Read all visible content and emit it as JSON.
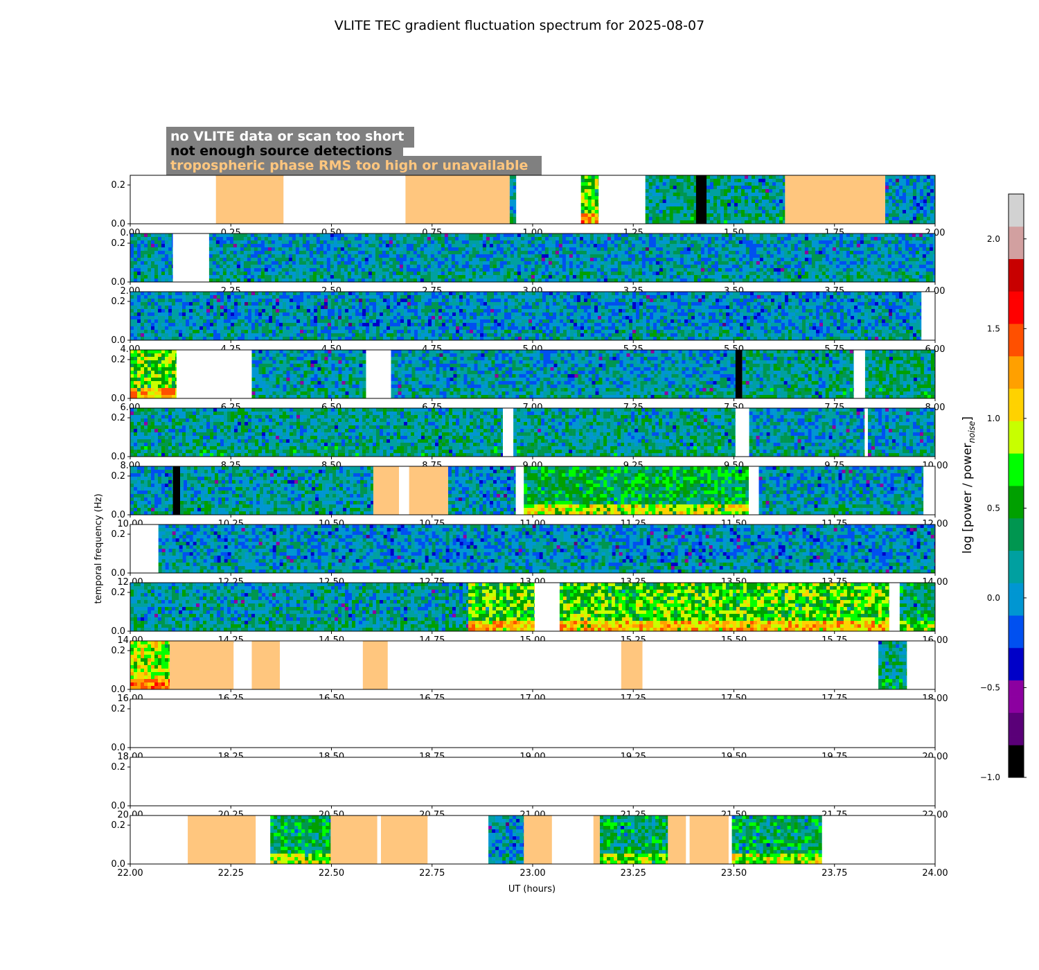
{
  "chart_data": {
    "type": "heatmap",
    "title": "VLITE TEC gradient fluctuation spectrum for 2025-08-07",
    "xlabel": "UT (hours)",
    "ylabel": "temporal frequency (Hz)",
    "yticks": [
      "0.0",
      "0.2"
    ],
    "ylim": [
      0,
      0.25
    ],
    "colorbar": {
      "label": "log [power / power_noise]",
      "range": [
        -1.0,
        2.25
      ],
      "ticks": [
        "−1.0",
        "−0.5",
        "0.0",
        "0.5",
        "1.0",
        "1.5",
        "2.0"
      ],
      "tick_values": [
        -1.0,
        -0.5,
        0.0,
        0.5,
        1.0,
        1.5,
        2.0
      ],
      "colors": [
        "#000000",
        "#5a0078",
        "#8c00a0",
        "#0000c8",
        "#0050f0",
        "#0096d2",
        "#00a0a0",
        "#009650",
        "#00a000",
        "#00ff00",
        "#c8ff00",
        "#ffd200",
        "#ffa000",
        "#ff5000",
        "#ff0000",
        "#c80000",
        "#d2a0a0",
        "#d2d2d2"
      ]
    },
    "legend": [
      {
        "text": "no VLITE data or scan too short",
        "text_color": "#ffffff",
        "box_color": "#808080"
      },
      {
        "text": "not enough source detections",
        "text_color": "#000000",
        "box_color": "#808080"
      },
      {
        "text": "tropospheric phase RMS too high or unavailable",
        "text_color": "#ffc67e",
        "box_color": "#808080"
      }
    ],
    "flag_colors": {
      "no_data": "#ffffff",
      "not_enough_detections": "#000000",
      "trop_rms": "#ffc67e"
    },
    "rows": [
      {
        "xlim": [
          0,
          2
        ],
        "xticks": [
          "0.00",
          "0.25",
          "0.50",
          "0.75",
          "1.00",
          "1.25",
          "1.50",
          "1.75",
          "2.00"
        ],
        "segments": [
          {
            "start": 0.0,
            "end": 0.213,
            "kind": "none"
          },
          {
            "start": 0.213,
            "end": 0.381,
            "kind": "trop"
          },
          {
            "start": 0.381,
            "end": 0.684,
            "kind": "none"
          },
          {
            "start": 0.684,
            "end": 0.943,
            "kind": "trop"
          },
          {
            "start": 0.943,
            "end": 0.959,
            "kind": "data",
            "level": 0.1
          },
          {
            "start": 0.959,
            "end": 1.12,
            "kind": "none"
          },
          {
            "start": 1.12,
            "end": 1.164,
            "kind": "data",
            "level": 0.75
          },
          {
            "start": 1.164,
            "end": 1.28,
            "kind": "none"
          },
          {
            "start": 1.28,
            "end": 1.406,
            "kind": "data",
            "level": 0.25
          },
          {
            "start": 1.406,
            "end": 1.432,
            "kind": "det"
          },
          {
            "start": 1.432,
            "end": 1.627,
            "kind": "data",
            "level": 0.2
          },
          {
            "start": 1.627,
            "end": 1.876,
            "kind": "trop"
          },
          {
            "start": 1.876,
            "end": 2.0,
            "kind": "data",
            "level": 0.05
          }
        ]
      },
      {
        "xlim": [
          2,
          4
        ],
        "xticks": [
          "2.00",
          "2.25",
          "2.50",
          "2.75",
          "3.00",
          "3.25",
          "3.50",
          "3.75",
          "4.00"
        ],
        "segments": [
          {
            "start": 2.0,
            "end": 2.106,
            "kind": "data",
            "level": 0.1
          },
          {
            "start": 2.106,
            "end": 2.196,
            "kind": "none"
          },
          {
            "start": 2.196,
            "end": 4.0,
            "kind": "data",
            "level": 0.1
          }
        ]
      },
      {
        "xlim": [
          4,
          6
        ],
        "xticks": [
          "4.00",
          "4.25",
          "4.50",
          "4.75",
          "5.00",
          "5.25",
          "5.50",
          "5.75",
          "6.00"
        ],
        "segments": [
          {
            "start": 4.0,
            "end": 5.966,
            "kind": "data",
            "level": 0.05
          },
          {
            "start": 5.966,
            "end": 6.0,
            "kind": "none"
          }
        ]
      },
      {
        "xlim": [
          6,
          8
        ],
        "xticks": [
          "6.00",
          "6.25",
          "6.50",
          "6.75",
          "7.00",
          "7.25",
          "7.50",
          "7.75",
          "8.00"
        ],
        "segments": [
          {
            "start": 6.0,
            "end": 6.115,
            "kind": "data",
            "level": 0.7
          },
          {
            "start": 6.115,
            "end": 6.302,
            "kind": "none"
          },
          {
            "start": 6.302,
            "end": 6.586,
            "kind": "data",
            "level": 0.15
          },
          {
            "start": 6.586,
            "end": 6.648,
            "kind": "none"
          },
          {
            "start": 6.648,
            "end": 7.504,
            "kind": "data",
            "level": 0.1
          },
          {
            "start": 7.504,
            "end": 7.521,
            "kind": "det"
          },
          {
            "start": 7.521,
            "end": 7.798,
            "kind": "data",
            "level": 0.2
          },
          {
            "start": 7.798,
            "end": 7.826,
            "kind": "none"
          },
          {
            "start": 7.826,
            "end": 8.0,
            "kind": "data",
            "level": 0.25
          }
        ]
      },
      {
        "xlim": [
          8,
          10
        ],
        "xticks": [
          "8.00",
          "8.25",
          "8.50",
          "8.75",
          "9.00",
          "9.25",
          "9.50",
          "9.75",
          "10.00"
        ],
        "segments": [
          {
            "start": 8.0,
            "end": 8.926,
            "kind": "data",
            "level": 0.2
          },
          {
            "start": 8.926,
            "end": 8.952,
            "kind": "none"
          },
          {
            "start": 8.952,
            "end": 9.504,
            "kind": "data",
            "level": 0.2
          },
          {
            "start": 9.504,
            "end": 9.538,
            "kind": "none"
          },
          {
            "start": 9.538,
            "end": 9.825,
            "kind": "data",
            "level": 0.1
          },
          {
            "start": 9.825,
            "end": 9.833,
            "kind": "none"
          },
          {
            "start": 9.833,
            "end": 10.0,
            "kind": "data",
            "level": 0.1
          }
        ]
      },
      {
        "xlim": [
          10,
          12
        ],
        "xticks": [
          "10.00",
          "10.25",
          "10.50",
          "10.75",
          "11.00",
          "11.25",
          "11.50",
          "11.75",
          "12.00"
        ],
        "segments": [
          {
            "start": 10.0,
            "end": 10.106,
            "kind": "data",
            "level": 0.1
          },
          {
            "start": 10.106,
            "end": 10.124,
            "kind": "det"
          },
          {
            "start": 10.124,
            "end": 10.604,
            "kind": "data",
            "level": 0.15
          },
          {
            "start": 10.604,
            "end": 10.668,
            "kind": "trop"
          },
          {
            "start": 10.668,
            "end": 10.693,
            "kind": "none"
          },
          {
            "start": 10.693,
            "end": 10.79,
            "kind": "trop"
          },
          {
            "start": 10.79,
            "end": 10.958,
            "kind": "data",
            "level": 0.05
          },
          {
            "start": 10.958,
            "end": 10.978,
            "kind": "none"
          },
          {
            "start": 10.978,
            "end": 11.537,
            "kind": "data",
            "level": 0.45
          },
          {
            "start": 11.537,
            "end": 11.562,
            "kind": "none"
          },
          {
            "start": 11.562,
            "end": 11.971,
            "kind": "data",
            "level": 0.1
          },
          {
            "start": 11.971,
            "end": 12.0,
            "kind": "none"
          }
        ]
      },
      {
        "xlim": [
          12,
          14
        ],
        "xticks": [
          "12.00",
          "12.25",
          "12.50",
          "12.75",
          "13.00",
          "13.25",
          "13.50",
          "13.75",
          "14.00"
        ],
        "segments": [
          {
            "start": 12.0,
            "end": 12.07,
            "kind": "none"
          },
          {
            "start": 12.07,
            "end": 14.0,
            "kind": "data",
            "level": 0.05
          }
        ]
      },
      {
        "xlim": [
          14,
          16
        ],
        "xticks": [
          "14.00",
          "14.25",
          "14.50",
          "14.75",
          "15.00",
          "15.25",
          "15.50",
          "15.75",
          "16.00"
        ],
        "segments": [
          {
            "start": 14.0,
            "end": 14.84,
            "kind": "data",
            "level": 0.15
          },
          {
            "start": 14.84,
            "end": 15.005,
            "kind": "data",
            "level": 0.7
          },
          {
            "start": 15.005,
            "end": 15.067,
            "kind": "none"
          },
          {
            "start": 15.067,
            "end": 15.886,
            "kind": "data",
            "level": 0.7
          },
          {
            "start": 15.886,
            "end": 15.912,
            "kind": "none"
          },
          {
            "start": 15.912,
            "end": 16.0,
            "kind": "data",
            "level": 0.35
          }
        ]
      },
      {
        "xlim": [
          16,
          18
        ],
        "xticks": [
          "16.00",
          "16.25",
          "16.50",
          "16.75",
          "17.00",
          "17.25",
          "17.50",
          "17.75",
          "18.00"
        ],
        "segments": [
          {
            "start": 16.0,
            "end": 16.098,
            "kind": "data",
            "level": 0.9
          },
          {
            "start": 16.098,
            "end": 16.257,
            "kind": "trop"
          },
          {
            "start": 16.257,
            "end": 16.302,
            "kind": "none"
          },
          {
            "start": 16.302,
            "end": 16.372,
            "kind": "trop"
          },
          {
            "start": 16.372,
            "end": 16.578,
            "kind": "none"
          },
          {
            "start": 16.578,
            "end": 16.64,
            "kind": "trop"
          },
          {
            "start": 16.64,
            "end": 17.22,
            "kind": "none"
          },
          {
            "start": 17.22,
            "end": 17.273,
            "kind": "trop"
          },
          {
            "start": 17.273,
            "end": 17.859,
            "kind": "none"
          },
          {
            "start": 17.859,
            "end": 17.93,
            "kind": "data",
            "level": 0.25
          },
          {
            "start": 17.93,
            "end": 18.0,
            "kind": "none"
          }
        ]
      },
      {
        "xlim": [
          18,
          20
        ],
        "xticks": [
          "18.00",
          "18.25",
          "18.50",
          "18.75",
          "19.00",
          "19.25",
          "19.50",
          "19.75",
          "20.00"
        ],
        "segments": [
          {
            "start": 18.0,
            "end": 20.0,
            "kind": "none"
          }
        ]
      },
      {
        "xlim": [
          20,
          22
        ],
        "xticks": [
          "20.00",
          "20.25",
          "20.50",
          "20.75",
          "21.00",
          "21.25",
          "21.50",
          "21.75",
          "22.00"
        ],
        "segments": [
          {
            "start": 20.0,
            "end": 22.0,
            "kind": "none"
          }
        ]
      },
      {
        "xlim": [
          22,
          24
        ],
        "xticks": [
          "22.00",
          "22.25",
          "22.50",
          "22.75",
          "23.00",
          "23.25",
          "23.50",
          "23.75",
          "24.00"
        ],
        "segments": [
          {
            "start": 22.0,
            "end": 22.143,
            "kind": "none"
          },
          {
            "start": 22.143,
            "end": 22.312,
            "kind": "trop"
          },
          {
            "start": 22.312,
            "end": 22.348,
            "kind": "none"
          },
          {
            "start": 22.348,
            "end": 22.498,
            "kind": "data",
            "level": 0.4
          },
          {
            "start": 22.498,
            "end": 22.614,
            "kind": "trop"
          },
          {
            "start": 22.614,
            "end": 22.623,
            "kind": "none"
          },
          {
            "start": 22.623,
            "end": 22.739,
            "kind": "trop"
          },
          {
            "start": 22.739,
            "end": 22.89,
            "kind": "none"
          },
          {
            "start": 22.89,
            "end": 22.978,
            "kind": "data",
            "level": 0.05
          },
          {
            "start": 22.978,
            "end": 23.048,
            "kind": "trop"
          },
          {
            "start": 23.048,
            "end": 23.151,
            "kind": "none"
          },
          {
            "start": 23.151,
            "end": 23.167,
            "kind": "trop"
          },
          {
            "start": 23.167,
            "end": 23.336,
            "kind": "data",
            "level": 0.35
          },
          {
            "start": 23.336,
            "end": 23.381,
            "kind": "trop"
          },
          {
            "start": 23.381,
            "end": 23.39,
            "kind": "none"
          },
          {
            "start": 23.39,
            "end": 23.487,
            "kind": "trop"
          },
          {
            "start": 23.487,
            "end": 23.495,
            "kind": "none"
          },
          {
            "start": 23.495,
            "end": 23.719,
            "kind": "data",
            "level": 0.4
          },
          {
            "start": 23.719,
            "end": 24.0,
            "kind": "none"
          }
        ]
      }
    ]
  }
}
